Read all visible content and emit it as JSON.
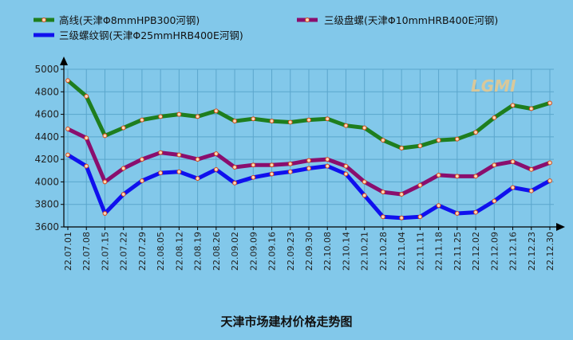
{
  "chart_data": {
    "type": "line",
    "title": "天津市场建材价格走势图",
    "ylim": [
      3600,
      5000
    ],
    "yticks": [
      3600,
      3800,
      4000,
      4200,
      4400,
      4600,
      4800,
      5000
    ],
    "grid": true,
    "legend_position": "top",
    "watermark": "LGMI",
    "categories": [
      "22.07.01",
      "22.07.08",
      "22.07.15",
      "22.07.22",
      "22.07.29",
      "22.08.05",
      "22.08.12",
      "22.08.19",
      "22.08.26",
      "22.09.02",
      "22.09.09",
      "22.09.16",
      "22.09.23",
      "22.09.30",
      "22.10.08",
      "22.10.14",
      "22.10.21",
      "22.10.28",
      "22.11.04",
      "22.11.11",
      "22.11.18",
      "22.11.25",
      "22.12.02",
      "22.12.09",
      "22.12.16",
      "22.12.23",
      "22.12.30"
    ],
    "series": [
      {
        "name": "高线(天津Φ8mmHPB300河钢)",
        "color": "#1e7e1e",
        "values": [
          4900,
          4760,
          4410,
          4480,
          4550,
          4580,
          4600,
          4580,
          4630,
          4540,
          4560,
          4540,
          4530,
          4550,
          4560,
          4500,
          4480,
          4370,
          4300,
          4320,
          4370,
          4380,
          4440,
          4570,
          4680,
          4650,
          4700
        ]
      },
      {
        "name": "三级盘螺(天津Φ10mmHRB400E河钢)",
        "color": "#8a0e6e",
        "values": [
          4470,
          4390,
          4000,
          4120,
          4200,
          4260,
          4240,
          4200,
          4250,
          4130,
          4150,
          4150,
          4160,
          4190,
          4200,
          4140,
          4000,
          3910,
          3890,
          3970,
          4060,
          4050,
          4050,
          4150,
          4180,
          4110,
          4170
        ]
      },
      {
        "name": "三级螺纹钢(天津Φ25mmHRB400E河钢)",
        "color": "#1010ee",
        "values": [
          4240,
          4140,
          3720,
          3890,
          4010,
          4080,
          4090,
          4030,
          4110,
          3990,
          4040,
          4070,
          4090,
          4120,
          4140,
          4070,
          3880,
          3690,
          3680,
          3690,
          3790,
          3720,
          3730,
          3830,
          3950,
          3920,
          4010
        ]
      }
    ]
  }
}
